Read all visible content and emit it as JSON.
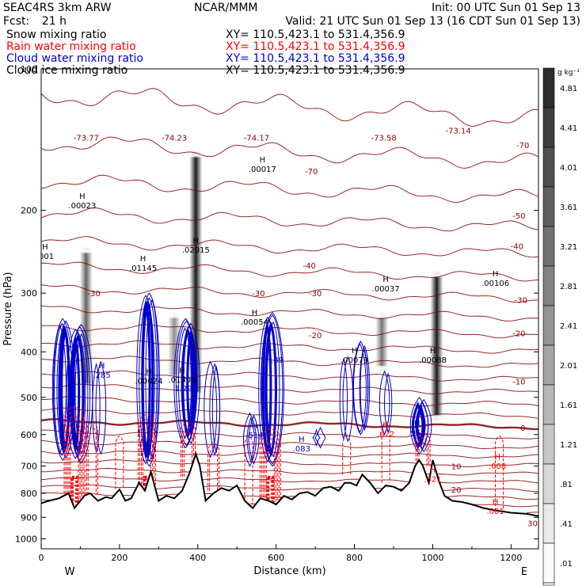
{
  "header": {
    "model": "SEAC4RS   3km ARW",
    "center": "NCAR/MMM",
    "init": "Init: 00 UTC Sun 01 Sep 13",
    "fcst_label": "Fcst:",
    "fcst_value": "21 h",
    "valid": "Valid: 21 UTC Sun 01 Sep 13 (16 CDT Sun 01 Sep 13)"
  },
  "fields": [
    {
      "name": "Snow mixing ratio",
      "xy": "XY= 110.5,423.1 to 531.4,356.9",
      "color": "#000000"
    },
    {
      "name": "Rain water mixing ratio",
      "xy": "XY= 110.5,423.1 to 531.4,356.9",
      "color": "#ff0000"
    },
    {
      "name": "Cloud water mixing ratio",
      "xy": "XY= 110.5,423.1 to 531.4,356.9",
      "color": "#0000cc"
    },
    {
      "name": "Cloud ice mixing ratio",
      "xy": "XY= 110.5,423.1 to 531.4,356.9",
      "color": "#000000"
    }
  ],
  "colorbar": {
    "unit": "g kg⁻¹",
    "labels": [
      "4.81",
      "4.41",
      "4.01",
      "3.61",
      "3.21",
      "2.81",
      "2.41",
      "2.01",
      "1.61",
      "1.21",
      ".81",
      ".41",
      ".01"
    ]
  },
  "colors": {
    "temperature_contour": "#8b0000",
    "freezing_level": "#7a0000",
    "terrain": "#000000",
    "rain": "#ff0000",
    "cloud_water": "#0000cc"
  },
  "chart_data": {
    "type": "contour",
    "xlabel": "Distance (km)",
    "ylabel": "Pressure (hPa)",
    "xlim": [
      0,
      1270
    ],
    "ylim": [
      1050,
      100
    ],
    "y_scale": "log",
    "x_ticks": [
      0,
      200,
      400,
      600,
      800,
      1000,
      1200
    ],
    "y_ticks": [
      100,
      200,
      300,
      400,
      500,
      600,
      700,
      800,
      900,
      1000
    ],
    "x_end_labels": {
      "left": "W",
      "right": "E"
    },
    "grid": false,
    "temperature_contour_labels": [
      {
        "x": 115,
        "p": 140,
        "text": "-73.77"
      },
      {
        "x": 340,
        "p": 140,
        "text": "-74.23"
      },
      {
        "x": 550,
        "p": 140,
        "text": "-74.17"
      },
      {
        "x": 875,
        "p": 140,
        "text": "-73.58"
      },
      {
        "x": 1065,
        "p": 135,
        "text": "-73.14"
      },
      {
        "x": 690,
        "p": 165,
        "text": "-70"
      },
      {
        "x": 1230,
        "p": 145,
        "text": "-70"
      },
      {
        "x": 1220,
        "p": 205,
        "text": "-50"
      },
      {
        "x": 1215,
        "p": 238,
        "text": "-40"
      },
      {
        "x": 685,
        "p": 262,
        "text": "-40"
      },
      {
        "x": 135,
        "p": 300,
        "text": "-30"
      },
      {
        "x": 555,
        "p": 300,
        "text": "-30"
      },
      {
        "x": 700,
        "p": 300,
        "text": "-30"
      },
      {
        "x": 1225,
        "p": 310,
        "text": "-30"
      },
      {
        "x": 1220,
        "p": 365,
        "text": "-20"
      },
      {
        "x": 700,
        "p": 368,
        "text": "-20"
      },
      {
        "x": 1220,
        "p": 462,
        "text": "-10"
      },
      {
        "x": 1230,
        "p": 580,
        "text": "0"
      },
      {
        "x": 1060,
        "p": 700,
        "text": "10"
      },
      {
        "x": 1060,
        "p": 785,
        "text": "20"
      },
      {
        "x": 1255,
        "p": 925,
        "text": "30"
      }
    ],
    "maxima_labels": [
      {
        "x": 105,
        "p": 195,
        "text": ".00023"
      },
      {
        "x": 10,
        "p": 250,
        "text": ".001"
      },
      {
        "x": 260,
        "p": 265,
        "text": ".01145"
      },
      {
        "x": 395,
        "p": 242,
        "text": ".02015"
      },
      {
        "x": 565,
        "p": 163,
        "text": ".00017"
      },
      {
        "x": 545,
        "p": 345,
        "text": ".00054"
      },
      {
        "x": 880,
        "p": 293,
        "text": ".00037"
      },
      {
        "x": 1160,
        "p": 285,
        "text": ".00106"
      },
      {
        "x": 1000,
        "p": 415,
        "text": ".00088"
      },
      {
        "x": 800,
        "p": 415,
        "text": ".00079"
      },
      {
        "x": 275,
        "p": 460,
        "text": ".00024"
      },
      {
        "x": 360,
        "p": 458,
        "text": ".01303"
      },
      {
        "x": 590,
        "p": 415,
        "text": "1.189"
      },
      {
        "x": 155,
        "p": 447,
        "text": ".285"
      },
      {
        "x": 545,
        "p": 600,
        "text": ".514"
      },
      {
        "x": 665,
        "p": 642,
        "text": ".083"
      },
      {
        "x": 960,
        "p": 593,
        "text": ".951"
      },
      {
        "x": 370,
        "p": 478,
        "text": "1.205"
      },
      {
        "x": 880,
        "p": 597,
        "text": ".022"
      },
      {
        "x": 1165,
        "p": 698,
        "text": ".008"
      },
      {
        "x": 1160,
        "p": 872,
        "text": ".001"
      },
      {
        "x": 1000,
        "p": 745,
        "text": ".521"
      }
    ],
    "rain_cells": [
      {
        "x": 85,
        "p_top": 520,
        "p_bot": 860,
        "max": 0.9
      },
      {
        "x": 130,
        "p_top": 560,
        "p_bot": 820,
        "max": 0.3
      },
      {
        "x": 200,
        "p_top": 600,
        "p_bot": 840,
        "max": 0.2
      },
      {
        "x": 270,
        "p_top": 540,
        "p_bot": 820,
        "max": 0.8
      },
      {
        "x": 375,
        "p_top": 560,
        "p_bot": 830,
        "max": 0.5
      },
      {
        "x": 440,
        "p_top": 620,
        "p_bot": 790,
        "max": 0.3
      },
      {
        "x": 530,
        "p_top": 600,
        "p_bot": 850,
        "max": 0.2
      },
      {
        "x": 585,
        "p_top": 580,
        "p_bot": 840,
        "max": 0.9
      },
      {
        "x": 780,
        "p_top": 600,
        "p_bot": 730,
        "max": 0.1
      },
      {
        "x": 880,
        "p_top": 560,
        "p_bot": 760,
        "max": 0.1
      },
      {
        "x": 975,
        "p_top": 590,
        "p_bot": 790,
        "max": 0.6
      },
      {
        "x": 1170,
        "p_top": 600,
        "p_bot": 900,
        "max": 0.01
      }
    ],
    "cloud_water_cells": [
      {
        "x": 55,
        "p_top": 340,
        "p_bot": 680,
        "max": 1.0
      },
      {
        "x": 95,
        "p_top": 350,
        "p_bot": 690,
        "max": 1.2
      },
      {
        "x": 145,
        "p_top": 420,
        "p_bot": 660,
        "max": 0.3
      },
      {
        "x": 275,
        "p_top": 300,
        "p_bot": 700,
        "max": 1.0
      },
      {
        "x": 375,
        "p_top": 340,
        "p_bot": 640,
        "max": 1.2
      },
      {
        "x": 440,
        "p_top": 420,
        "p_bot": 670,
        "max": 0.5
      },
      {
        "x": 535,
        "p_top": 540,
        "p_bot": 700,
        "max": 0.5
      },
      {
        "x": 585,
        "p_top": 330,
        "p_bot": 700,
        "max": 1.2
      },
      {
        "x": 705,
        "p_top": 580,
        "p_bot": 640,
        "max": 0.08
      },
      {
        "x": 780,
        "p_top": 410,
        "p_bot": 620,
        "max": 0.4
      },
      {
        "x": 820,
        "p_top": 380,
        "p_bot": 600,
        "max": 0.6
      },
      {
        "x": 885,
        "p_top": 440,
        "p_bot": 600,
        "max": 0.2
      },
      {
        "x": 970,
        "p_top": 500,
        "p_bot": 660,
        "max": 0.9
      }
    ],
    "snow_columns": [
      {
        "x": 115,
        "p_top": 240,
        "p_bot": 480,
        "max": 2.0
      },
      {
        "x": 395,
        "p_top": 150,
        "p_bot": 500,
        "max": 4.0
      },
      {
        "x": 870,
        "p_top": 330,
        "p_bot": 440,
        "max": 1.6
      },
      {
        "x": 1010,
        "p_top": 270,
        "p_bot": 560,
        "max": 3.6
      },
      {
        "x": 340,
        "p_top": 330,
        "p_bot": 460,
        "max": 1.0
      }
    ],
    "terrain": {
      "x": [
        0,
        20,
        45,
        70,
        85,
        95,
        110,
        125,
        145,
        165,
        180,
        200,
        215,
        230,
        250,
        265,
        280,
        300,
        320,
        340,
        360,
        380,
        395,
        405,
        420,
        440,
        460,
        480,
        500,
        520,
        540,
        560,
        580,
        600,
        620,
        640,
        660,
        680,
        700,
        720,
        740,
        760,
        775,
        790,
        805,
        820,
        840,
        860,
        880,
        900,
        920,
        940,
        955,
        965,
        975,
        990,
        1000,
        1015,
        1030,
        1050,
        1075,
        1100,
        1130,
        1160,
        1200,
        1240,
        1270
      ],
      "p": [
        840,
        830,
        820,
        800,
        860,
        840,
        810,
        800,
        830,
        815,
        820,
        785,
        830,
        820,
        760,
        790,
        720,
        830,
        810,
        820,
        790,
        720,
        660,
        700,
        830,
        800,
        780,
        790,
        770,
        830,
        860,
        820,
        830,
        845,
        810,
        825,
        800,
        795,
        810,
        780,
        775,
        790,
        760,
        760,
        770,
        730,
        760,
        800,
        770,
        775,
        790,
        760,
        700,
        680,
        700,
        760,
        680,
        750,
        810,
        830,
        835,
        845,
        860,
        870,
        880,
        885,
        895
      ]
    }
  }
}
